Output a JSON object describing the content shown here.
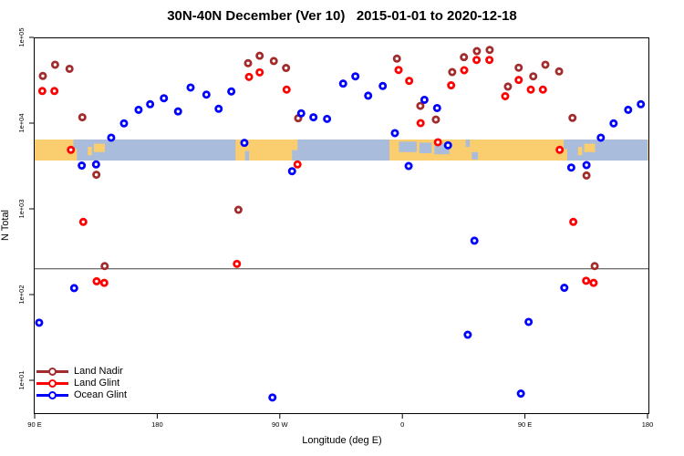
{
  "title": "30N-40N December (Ver 10)   2015-01-01 to 2020-12-18",
  "axes": {
    "x_label": "Longitude (deg E)",
    "y_label": "N Total"
  },
  "chart_data": {
    "type": "scatter",
    "title": "30N-40N December (Ver 10)   2015-01-01 to 2020-12-18",
    "xlabel": "Longitude (deg E)",
    "ylabel": "N Total",
    "x_axis": {
      "min": 90,
      "max": 540,
      "ticks": [
        {
          "value": 90,
          "label": "90 E"
        },
        {
          "value": 180,
          "label": "180"
        },
        {
          "value": 270,
          "label": "90 W"
        },
        {
          "value": 360,
          "label": "0"
        },
        {
          "value": 450,
          "label": "90 E"
        },
        {
          "value": 540,
          "label": "180"
        }
      ]
    },
    "y_axis": {
      "scale": "log",
      "min": 10,
      "max": 100000,
      "ticks": [
        {
          "value": 100000,
          "label": "1e+05"
        },
        {
          "value": 10000,
          "label": "1e+04"
        },
        {
          "value": 1000,
          "label": "1e+03"
        },
        {
          "value": 100,
          "label": "1e+02"
        },
        {
          "value": 10,
          "label": "1e+01"
        }
      ]
    },
    "reference_line": {
      "value": 200,
      "color": "#444444"
    },
    "map_band": {
      "top_value": 6440,
      "bottom_value": 3660,
      "land_color": "#FACD6E",
      "ocean_color": "#A9BCDC",
      "ocean_segments": [
        [
          121,
          237.5
        ],
        [
          283,
          350.5
        ],
        [
          481,
          540
        ]
      ],
      "features": [
        {
          "lon0": 129,
          "lon1": 132,
          "f0": 0.35,
          "f1": 0.75,
          "type": "land"
        },
        {
          "lon0": 133.5,
          "lon1": 141.5,
          "f0": 0.2,
          "f1": 0.6,
          "type": "land"
        },
        {
          "lon0": 489,
          "lon1": 492,
          "f0": 0.35,
          "f1": 0.75,
          "type": "land"
        },
        {
          "lon0": 493.5,
          "lon1": 501.5,
          "f0": 0.2,
          "f1": 0.6,
          "type": "land"
        },
        {
          "lon0": 118.5,
          "lon1": 121,
          "f0": 0.0,
          "f1": 0.45,
          "type": "ocean"
        },
        {
          "lon0": 478.5,
          "lon1": 481,
          "f0": 0.0,
          "f1": 0.45,
          "type": "ocean"
        },
        {
          "lon0": 244.5,
          "lon1": 247.5,
          "f0": 0.55,
          "f1": 1.0,
          "type": "ocean"
        },
        {
          "lon0": 279,
          "lon1": 283,
          "f0": 0.5,
          "f1": 1.0,
          "type": "ocean"
        },
        {
          "lon0": 357.5,
          "lon1": 370.5,
          "f0": 0.1,
          "f1": 0.6,
          "type": "ocean"
        },
        {
          "lon0": 372.5,
          "lon1": 381.5,
          "f0": 0.15,
          "f1": 0.65,
          "type": "ocean"
        },
        {
          "lon0": 383.5,
          "lon1": 394.5,
          "f0": 0.2,
          "f1": 0.7,
          "type": "ocean"
        },
        {
          "lon0": 406.5,
          "lon1": 409.5,
          "f0": 0.0,
          "f1": 0.35,
          "type": "ocean"
        },
        {
          "lon0": 411,
          "lon1": 415.5,
          "f0": 0.6,
          "f1": 0.95,
          "type": "ocean"
        }
      ]
    },
    "series": [
      {
        "name": "Land Nadir",
        "color": "#A22C2C",
        "points": [
          [
            96,
            35500
          ],
          [
            105,
            48000
          ],
          [
            115.6,
            43000
          ],
          [
            125,
            11700
          ],
          [
            135.3,
            2500
          ],
          [
            141.4,
            215
          ],
          [
            239.6,
            975
          ],
          [
            246.7,
            50000
          ],
          [
            255.2,
            61000
          ],
          [
            265.6,
            53000
          ],
          [
            274.6,
            44000
          ],
          [
            283.5,
            11400
          ],
          [
            356,
            56500
          ],
          [
            373.2,
            15900
          ],
          [
            384.6,
            11000
          ],
          [
            396.6,
            39400
          ],
          [
            405.2,
            58800
          ],
          [
            414.7,
            69200
          ],
          [
            424.1,
            71500
          ],
          [
            437.5,
            26700
          ],
          [
            445.4,
            44300
          ],
          [
            456.1,
            35100
          ],
          [
            465,
            48000
          ],
          [
            475.1,
            40100
          ],
          [
            484.9,
            11500
          ],
          [
            495.2,
            2450
          ],
          [
            501.2,
            215
          ]
        ]
      },
      {
        "name": "Land Glint",
        "color": "#FF0000",
        "points": [
          [
            95.6,
            23700
          ],
          [
            104.5,
            23700
          ],
          [
            116.6,
            4880
          ],
          [
            125.7,
            705
          ],
          [
            135.5,
            143
          ],
          [
            141.1,
            137
          ],
          [
            238.5,
            228
          ],
          [
            247.4,
            34600
          ],
          [
            255.2,
            39100
          ],
          [
            275,
            24600
          ],
          [
            283,
            3300
          ],
          [
            357.2,
            41700
          ],
          [
            365,
            31100
          ],
          [
            373.4,
            10000
          ],
          [
            386.1,
            5980
          ],
          [
            395.8,
            27600
          ],
          [
            405.4,
            41400
          ],
          [
            414.5,
            54600
          ],
          [
            423.9,
            54600
          ],
          [
            435.5,
            20600
          ],
          [
            445.4,
            31900
          ],
          [
            454.3,
            24600
          ],
          [
            463.2,
            24600
          ],
          [
            475.5,
            4880
          ],
          [
            485.5,
            705
          ],
          [
            494.9,
            145
          ],
          [
            500.4,
            137
          ]
        ]
      },
      {
        "name": "Ocean Glint",
        "color": "#0000FF",
        "points": [
          [
            93.3,
            47
          ],
          [
            119,
            119
          ],
          [
            124.6,
            3200
          ],
          [
            135.1,
            3300
          ],
          [
            146.2,
            6760
          ],
          [
            155.6,
            9930
          ],
          [
            166.3,
            14300
          ],
          [
            174.8,
            16600
          ],
          [
            184.9,
            19500
          ],
          [
            195.3,
            13700
          ],
          [
            204.5,
            26000
          ],
          [
            216.1,
            21500
          ],
          [
            225.1,
            14700
          ],
          [
            234.4,
            23400
          ],
          [
            244,
            5880
          ],
          [
            264.6,
            6.3
          ],
          [
            279,
            2750
          ],
          [
            285.7,
            13000
          ],
          [
            294.7,
            11700
          ],
          [
            304.7,
            11200
          ],
          [
            316.5,
            28900
          ],
          [
            325.5,
            35100
          ],
          [
            334.9,
            20900
          ],
          [
            345.6,
            27100
          ],
          [
            354.5,
            7640
          ],
          [
            364.6,
            3160
          ],
          [
            376.2,
            18700
          ],
          [
            385.5,
            15000
          ],
          [
            393.5,
            5510
          ],
          [
            408,
            34
          ],
          [
            412.9,
            425
          ],
          [
            447,
            7
          ],
          [
            452.7,
            48
          ],
          [
            478.9,
            120
          ],
          [
            484,
            3030
          ],
          [
            495.2,
            3240
          ],
          [
            505.7,
            6760
          ],
          [
            515.1,
            9930
          ],
          [
            525.8,
            14300
          ],
          [
            535.1,
            16600
          ]
        ]
      }
    ],
    "legend_position": "bottom-left"
  },
  "legend": {
    "items": [
      {
        "label": "Land Nadir"
      },
      {
        "label": "Land Glint"
      },
      {
        "label": "Ocean Glint"
      }
    ]
  }
}
